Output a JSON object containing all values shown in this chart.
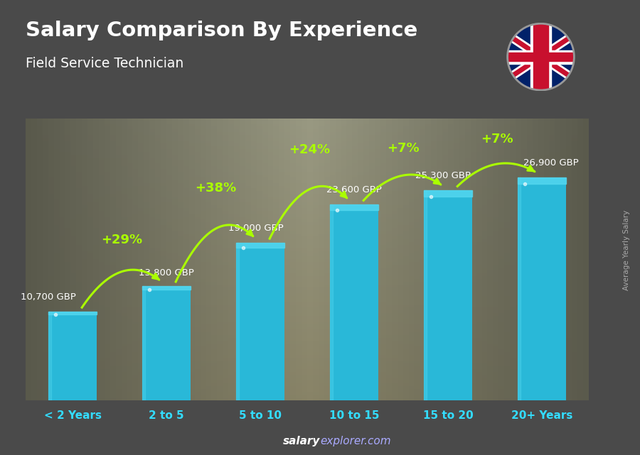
{
  "categories": [
    "< 2 Years",
    "2 to 5",
    "5 to 10",
    "10 to 15",
    "15 to 20",
    "20+ Years"
  ],
  "values": [
    10700,
    13800,
    19000,
    23600,
    25300,
    26900
  ],
  "bar_color": "#29b8d8",
  "bar_edge_color": "#1a9abf",
  "bar_highlight": "#55d8f0",
  "bg_color": "#4a4a4a",
  "title": "Salary Comparison By Experience",
  "subtitle": "Field Service Technician",
  "ylabel": "Average Yearly Salary",
  "footer_salary": "salary",
  "footer_explorer": "explorer",
  "footer_com": ".com",
  "salary_labels": [
    "10,700 GBP",
    "13,800 GBP",
    "19,000 GBP",
    "23,600 GBP",
    "25,300 GBP",
    "26,900 GBP"
  ],
  "pct_labels": [
    "+29%",
    "+38%",
    "+24%",
    "+7%",
    "+7%"
  ],
  "title_color": "#ffffff",
  "subtitle_color": "#ffffff",
  "label_color": "#ffffff",
  "pct_color": "#aaff00",
  "footer_color": "#aaaaff",
  "footer_bold_color": "#ffffff",
  "axis_label_color": "#33ddff",
  "ylim": [
    0,
    34000
  ],
  "bar_width": 0.52
}
